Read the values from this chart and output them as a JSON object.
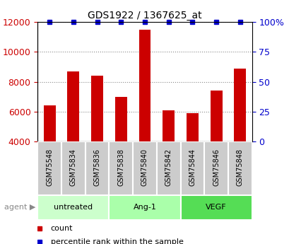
{
  "title": "GDS1922 / 1367625_at",
  "samples": [
    "GSM75548",
    "GSM75834",
    "GSM75836",
    "GSM75838",
    "GSM75840",
    "GSM75842",
    "GSM75844",
    "GSM75846",
    "GSM75848"
  ],
  "counts": [
    6400,
    8700,
    8400,
    7000,
    11500,
    6100,
    5900,
    7400,
    8900
  ],
  "percentile_ranks": [
    100,
    100,
    100,
    100,
    100,
    100,
    100,
    100,
    100
  ],
  "bar_color": "#cc0000",
  "dot_color": "#0000cc",
  "ylim_left": [
    4000,
    12000
  ],
  "ylim_right": [
    0,
    100
  ],
  "yticks_left": [
    4000,
    6000,
    8000,
    10000,
    12000
  ],
  "yticks_right": [
    0,
    25,
    50,
    75,
    100
  ],
  "ytick_labels_right": [
    "0",
    "25",
    "50",
    "75",
    "100%"
  ],
  "groups": [
    {
      "label": "untreated",
      "start": 0,
      "end": 3,
      "color": "#ccffcc"
    },
    {
      "label": "Ang-1",
      "start": 3,
      "end": 6,
      "color": "#aaffaa"
    },
    {
      "label": "VEGF",
      "start": 6,
      "end": 9,
      "color": "#55dd55"
    }
  ],
  "agent_label": "agent",
  "legend_count_label": "count",
  "legend_pct_label": "percentile rank within the sample",
  "grid_color": "#888888",
  "bar_width": 0.5,
  "figsize": [
    4.1,
    3.45
  ],
  "dpi": 100,
  "sample_box_color": "#cccccc",
  "sample_box_edge_color": "#ffffff"
}
